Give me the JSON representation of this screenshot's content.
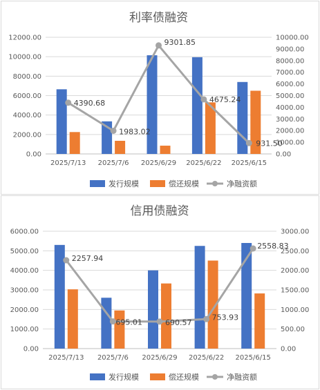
{
  "colors": {
    "issue": "#4472C4",
    "repay": "#ED7D31",
    "net": "#A5A5A5",
    "axis_text": "#595959",
    "grid": "#d9d9d9"
  },
  "legend": {
    "issue": "发行规模",
    "repay": "偿还规模",
    "net": "净融资额"
  },
  "chart_data": [
    {
      "type": "bar",
      "title": "利率债融资",
      "categories": [
        "2025/7/13",
        "2025/7/6",
        "2025/6/29",
        "2025/6/22",
        "2025/6/15"
      ],
      "series": [
        {
          "name": "发行规模",
          "type": "bar",
          "axis": "left",
          "values": [
            6650,
            3350,
            10150,
            9950,
            7400
          ]
        },
        {
          "name": "偿还规模",
          "type": "bar",
          "axis": "left",
          "values": [
            2250,
            1350,
            850,
            5300,
            6500
          ]
        },
        {
          "name": "净融资额",
          "type": "line",
          "axis": "right",
          "values": [
            4390.68,
            1983.02,
            9301.85,
            4675.24,
            931.5
          ]
        }
      ],
      "net_labels": [
        "4390.68",
        "1983.02",
        "9301.85",
        "4675.24",
        "931.50"
      ],
      "y_left": {
        "min": 0,
        "max": 12000,
        "ticks": [
          "0.00",
          "2000.00",
          "4000.00",
          "6000.00",
          "8000.00",
          "10000.00",
          "12000.00"
        ]
      },
      "y_right": {
        "min": 0,
        "max": 10000,
        "ticks": [
          "0.00",
          "1000.00",
          "2000.00",
          "3000.00",
          "4000.00",
          "5000.00",
          "6000.00",
          "7000.00",
          "8000.00",
          "9000.00",
          "10000.00"
        ]
      },
      "grid": true,
      "legend_position": "bottom"
    },
    {
      "type": "bar",
      "title": "信用债融资",
      "categories": [
        "2025/7/13",
        "2025/7/6",
        "2025/6/29",
        "2025/6/22",
        "2025/6/15"
      ],
      "series": [
        {
          "name": "发行规模",
          "type": "bar",
          "axis": "left",
          "values": [
            5300,
            2600,
            4000,
            5250,
            5400
          ]
        },
        {
          "name": "偿还规模",
          "type": "bar",
          "axis": "left",
          "values": [
            3030,
            1950,
            3330,
            4500,
            2820
          ]
        },
        {
          "name": "净融资额",
          "type": "line",
          "axis": "right",
          "values": [
            2257.94,
            695.01,
            690.57,
            753.93,
            2558.83
          ]
        }
      ],
      "net_labels": [
        "2257.94",
        "695.01",
        "690.57",
        "753.93",
        "2558.83"
      ],
      "y_left": {
        "min": 0,
        "max": 6000,
        "ticks": [
          "0.00",
          "1000.00",
          "2000.00",
          "3000.00",
          "4000.00",
          "5000.00",
          "6000.00"
        ]
      },
      "y_right": {
        "min": 0,
        "max": 3000,
        "ticks": [
          "0.00",
          "500.00",
          "1000.00",
          "1500.00",
          "2000.00",
          "2500.00",
          "3000.00"
        ]
      },
      "grid": true,
      "legend_position": "bottom"
    }
  ]
}
